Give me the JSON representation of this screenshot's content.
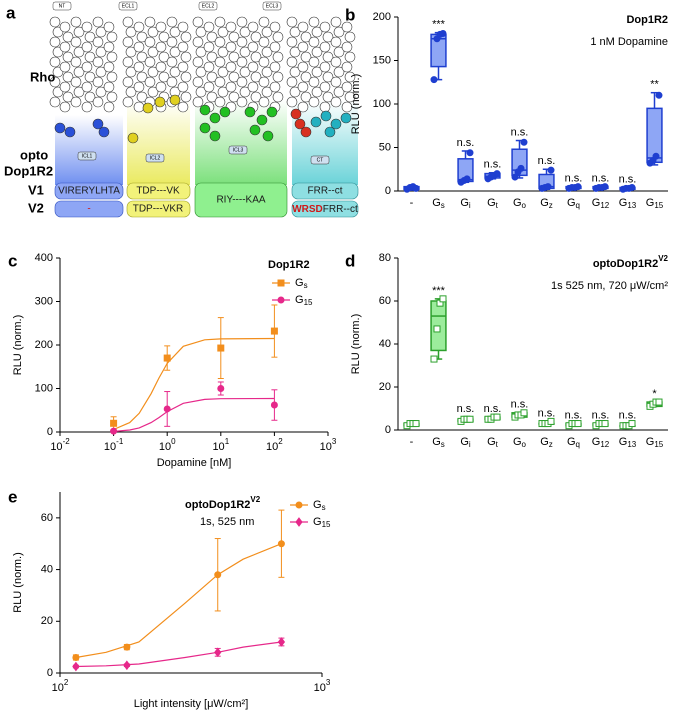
{
  "panel_a": {
    "label": "a",
    "row_labels": [
      "Rho",
      "opto",
      "Dop1R2",
      "V1",
      "V2"
    ],
    "loops": [
      "NT",
      "ECL1",
      "ECL2",
      "ECL3",
      "ICL1",
      "ICL2",
      "ICL3",
      "CT"
    ],
    "v1": [
      "VIRERYLHTA",
      "TDP---VK",
      "FRR--ct"
    ],
    "shared": "RIY----KAA",
    "v2": [
      "-",
      "TDP---VKR"
    ],
    "v2_last": [
      "WRSD",
      "FRR--ct"
    ]
  },
  "chart_data": [
    {
      "type": "box",
      "panel_label": "b",
      "title": "Dop1R2",
      "subtitle": "1 nM Dopamine",
      "y_label": "RLU (norm.)",
      "color": "#1f3fd0",
      "fill": "#8ea6f5",
      "marker": "circle",
      "categories": [
        "-",
        "Gs",
        "Gi",
        "Gt",
        "Go",
        "Gz",
        "Gq",
        "G12",
        "G13",
        "G15"
      ],
      "ylim": [
        0,
        200
      ],
      "yticks": [
        0,
        50,
        100,
        150,
        200
      ],
      "min": [
        1,
        128,
        10,
        14,
        15,
        2,
        2,
        3,
        2,
        30
      ],
      "q1": [
        2,
        143,
        11,
        15,
        18,
        3,
        3,
        3,
        2,
        33
      ],
      "median": [
        4,
        175,
        13,
        17,
        24,
        5,
        4,
        4,
        3,
        38
      ],
      "q3": [
        5,
        180,
        37,
        20,
        48,
        19,
        5,
        5,
        4,
        95
      ],
      "max": [
        6,
        182,
        46,
        21,
        58,
        25,
        5,
        5,
        4,
        113
      ],
      "points": [
        [
          2,
          4,
          5,
          3
        ],
        [
          128,
          175,
          180,
          181
        ],
        [
          10,
          12,
          14,
          44
        ],
        [
          14,
          16,
          18,
          20
        ],
        [
          16,
          22,
          26,
          56
        ],
        [
          3,
          4,
          5,
          24
        ],
        [
          3,
          4,
          4,
          5
        ],
        [
          3,
          4,
          4,
          5
        ],
        [
          2,
          3,
          3,
          4
        ],
        [
          32,
          35,
          40,
          110
        ]
      ],
      "annotations": [
        null,
        "***",
        "n.s.",
        "n.s.",
        "n.s.",
        "n.s.",
        "n.s.",
        "n.s.",
        "n.s.",
        "**"
      ]
    },
    {
      "type": "line",
      "panel_label": "c",
      "legend_title": "Dop1R2",
      "x_label": "Dopamine [nM]",
      "y_label": "RLU (norm.)",
      "log_x": true,
      "xlim": [
        0.01,
        1000
      ],
      "xticks": [
        {
          "value": 0.01,
          "label": "10-2"
        },
        {
          "value": 0.1,
          "label": "10-1"
        },
        {
          "value": 1,
          "label": "100"
        },
        {
          "value": 10,
          "label": "101"
        },
        {
          "value": 100,
          "label": "102"
        },
        {
          "value": 1000,
          "label": "103"
        }
      ],
      "ylim": [
        0,
        400
      ],
      "yticks": [
        0,
        100,
        200,
        300,
        400
      ],
      "series": [
        {
          "name": "Gs",
          "color": "#f28e1c",
          "marker": "square",
          "x": [
            0.1,
            1,
            10,
            100
          ],
          "values": [
            20,
            170,
            193,
            232
          ],
          "errors": [
            15,
            28,
            70,
            60
          ],
          "fit_x": [
            0.1,
            0.2,
            0.3,
            0.5,
            0.7,
            1,
            2,
            5,
            10,
            100
          ],
          "fit_values": [
            5.8,
            21.5,
            43,
            88,
            124,
            158,
            197,
            212,
            214,
            215
          ]
        },
        {
          "name": "G15",
          "color": "#e6288a",
          "marker": "circle",
          "x": [
            0.1,
            1,
            10,
            100
          ],
          "values": [
            2,
            53,
            100,
            62
          ],
          "errors": [
            3,
            40,
            15,
            35
          ],
          "fit_x": [
            0.1,
            0.2,
            0.3,
            0.5,
            0.7,
            1,
            2,
            5,
            10,
            100
          ],
          "fit_values": [
            1.2,
            4.5,
            9.5,
            21.6,
            33,
            47,
            66,
            75,
            76.5,
            77
          ]
        }
      ]
    },
    {
      "type": "box",
      "panel_label": "d",
      "title": "optoDop1R2",
      "title_sup": "V2",
      "subtitle": "1s 525 nm, 720 μW/cm²",
      "y_label": "RLU (norm.)",
      "color": "#2ca02c",
      "fill": "#9cec9c",
      "marker": "square",
      "categories": [
        "-",
        "Gs",
        "Gi",
        "Gt",
        "Go",
        "Gz",
        "Gq",
        "G12",
        "G13",
        "G15"
      ],
      "ylim": [
        0,
        80
      ],
      "yticks": [
        0,
        20,
        40,
        60,
        80
      ],
      "min": [
        2,
        33,
        4,
        5,
        6,
        3,
        2,
        2,
        2,
        11
      ],
      "q1": [
        2,
        37,
        4,
        5,
        6,
        3,
        2,
        2,
        2,
        11
      ],
      "median": [
        3,
        53,
        5,
        5,
        7,
        3,
        3,
        3,
        2,
        12
      ],
      "q3": [
        3,
        60,
        5,
        6,
        8,
        3,
        3,
        3,
        2,
        13
      ],
      "max": [
        4,
        61,
        6,
        6,
        8,
        4,
        3,
        3,
        3,
        13
      ],
      "points": [
        [
          2,
          3,
          3,
          3
        ],
        [
          33,
          47,
          59,
          61
        ],
        [
          4,
          5,
          5,
          5
        ],
        [
          5,
          5,
          6,
          6
        ],
        [
          6,
          7,
          7,
          8
        ],
        [
          3,
          3,
          3,
          4
        ],
        [
          2,
          3,
          3,
          3
        ],
        [
          2,
          3,
          3,
          3
        ],
        [
          2,
          2,
          2,
          3
        ],
        [
          11,
          12,
          13,
          13
        ]
      ],
      "annotations": [
        null,
        "***",
        "n.s.",
        "n.s.",
        "n.s.",
        "n.s.",
        "n.s.",
        "n.s.",
        "n.s.",
        "*"
      ]
    },
    {
      "type": "line",
      "panel_label": "e",
      "legend_title": "optoDop1R2",
      "legend_title_sup": "V2",
      "legend_subtitle": "1s, 525 nm",
      "x_label": "Light intensity [μW/cm²]",
      "y_label": "RLU (norm.)",
      "log_x": true,
      "xlim": [
        100,
        1000
      ],
      "xticks": [
        {
          "value": 100,
          "label": "102"
        },
        {
          "value": 1000,
          "label": "103"
        }
      ],
      "ylim": [
        0,
        70
      ],
      "yticks": [
        0,
        20,
        40,
        60
      ],
      "series": [
        {
          "name": "Gs",
          "color": "#f28e1c",
          "marker": "circle",
          "x": [
            115,
            180,
            400,
            700
          ],
          "values": [
            6,
            10,
            38,
            50
          ],
          "errors": [
            1,
            1,
            14,
            13
          ],
          "fit_x": [
            115,
            150,
            200,
            300,
            400,
            500,
            700
          ],
          "fit_values": [
            6,
            8,
            12,
            27,
            38,
            44,
            50
          ]
        },
        {
          "name": "G15",
          "color": "#e6288a",
          "marker": "diamond",
          "x": [
            115,
            180,
            400,
            700
          ],
          "values": [
            2.5,
            3,
            8,
            12
          ],
          "errors": [
            0.5,
            0.5,
            1.5,
            1.5
          ],
          "fit_x": [
            115,
            150,
            200,
            300,
            400,
            500,
            700
          ],
          "fit_values": [
            2.5,
            2.8,
            3.5,
            6,
            8,
            10,
            12
          ]
        }
      ]
    }
  ]
}
